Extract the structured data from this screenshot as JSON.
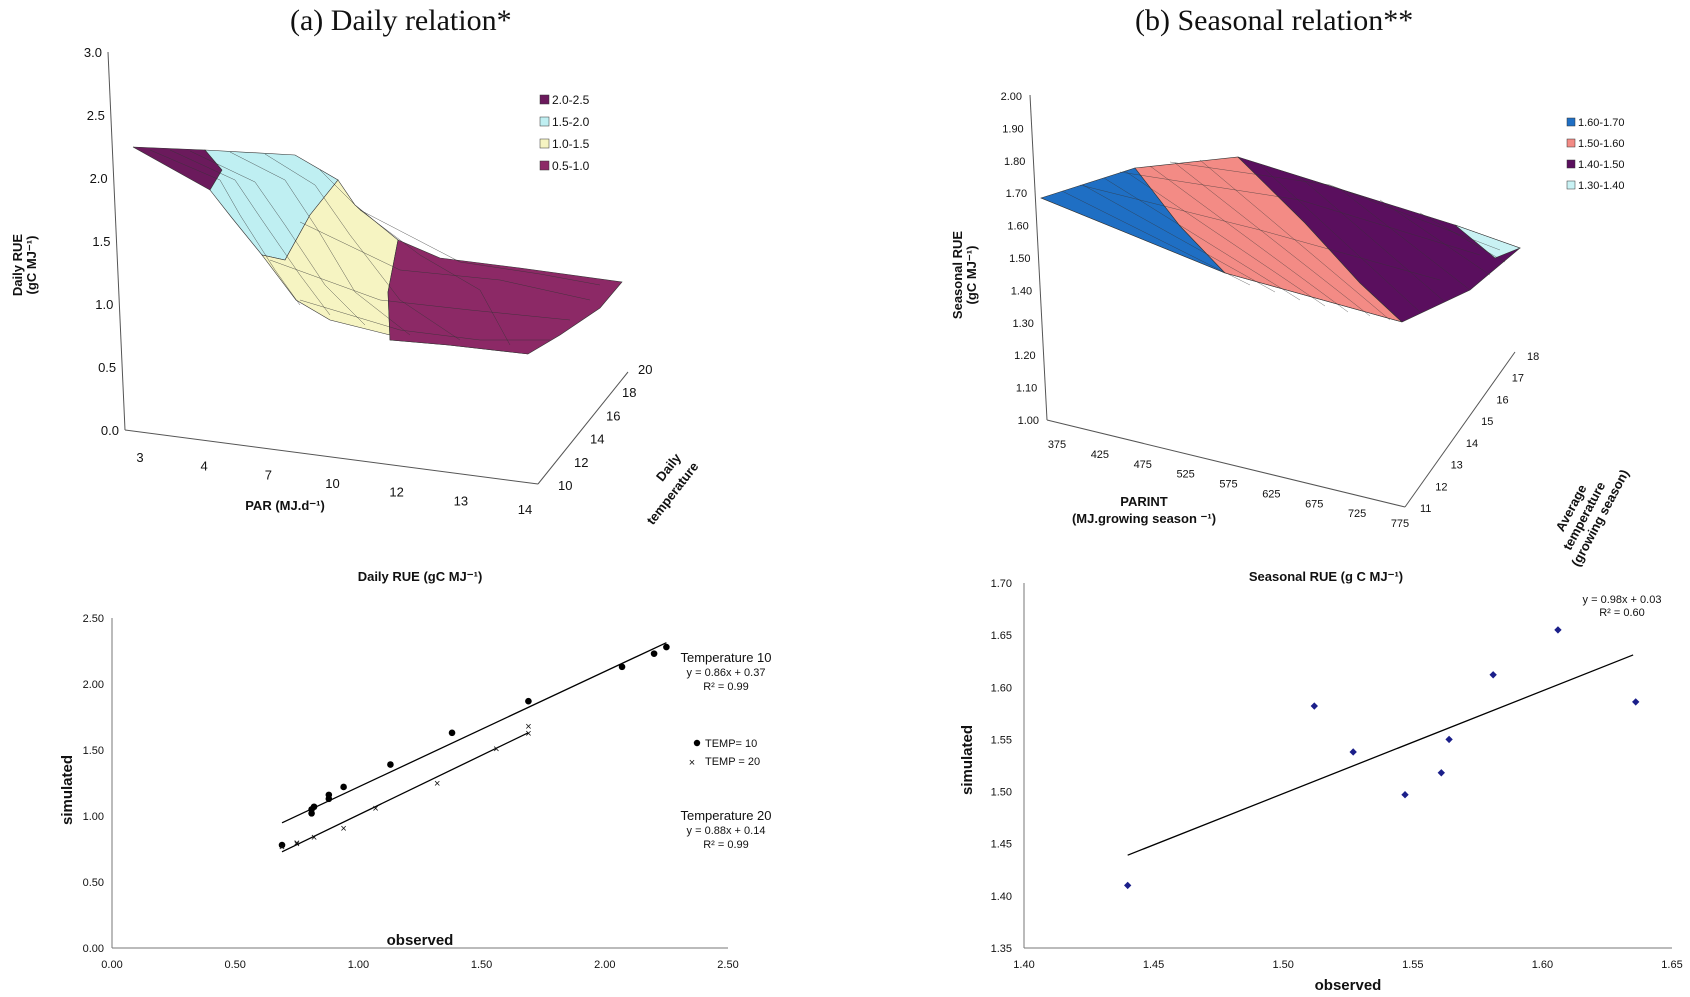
{
  "panel_a_title": "(a) Daily relation*",
  "panel_b_title": "(b) Seasonal relation**",
  "colors": {
    "violet": "#6b1a5c",
    "cyan": "#bfeff2",
    "yellow": "#f6f4c2",
    "rose": "#8c2966",
    "blue": "#1f6fc4",
    "salmon": "#f38b85",
    "purple": "#5a0f5e",
    "pale_cyan": "#c9f2f4"
  },
  "chart_data": [
    {
      "type": "surface",
      "zlabel": "Daily RUE (gC MJ⁻¹)",
      "xlabel": "PAR (MJ.d⁻¹)",
      "ylabel": "Daily temperature",
      "z_ticks": [
        "3.0",
        "2.5",
        "2.0",
        "1.5",
        "1.0",
        "0.5",
        "0.0"
      ],
      "x_ticks": [
        "3",
        "4",
        "7",
        "10",
        "12",
        "13",
        "14"
      ],
      "y_ticks": [
        "20",
        "18",
        "16",
        "14",
        "12",
        "10"
      ],
      "legend": [
        "2.0-2.5",
        "1.5-2.0",
        "1.0-1.5",
        "0.5-1.0"
      ]
    },
    {
      "type": "surface",
      "zlabel": "Seasonal RUE (gC MJ⁻¹)",
      "xlabel": "PARINT (MJ.growing season ⁻¹)",
      "ylabel": "Average temperature (growing season)",
      "z_ticks": [
        "2.00",
        "1.90",
        "1.80",
        "1.70",
        "1.60",
        "1.50",
        "1.40",
        "1.30",
        "1.20",
        "1.10",
        "1.00"
      ],
      "x_ticks": [
        "375",
        "425",
        "475",
        "525",
        "575",
        "625",
        "675",
        "725",
        "775"
      ],
      "y_ticks": [
        "18",
        "17",
        "16",
        "15",
        "14",
        "13",
        "12",
        "11"
      ],
      "legend": [
        "1.60-1.70",
        "1.50-1.60",
        "1.40-1.50",
        "1.30-1.40"
      ]
    },
    {
      "type": "scatter",
      "title": "Daily RUE (gC MJ⁻¹)",
      "xlabel": "observed",
      "ylabel": "simulated",
      "xlim": [
        0,
        2.5
      ],
      "ylim": [
        0,
        2.5
      ],
      "x_ticks": [
        "0.00",
        "0.50",
        "1.00",
        "1.50",
        "2.00",
        "2.50"
      ],
      "y_ticks": [
        "0.00",
        "0.50",
        "1.00",
        "1.50",
        "2.00",
        "2.50"
      ],
      "series": [
        {
          "name": "TEMP= 10",
          "points": [
            [
              0.69,
              0.78
            ],
            [
              0.81,
              1.02
            ],
            [
              0.81,
              1.05
            ],
            [
              0.82,
              1.07
            ],
            [
              0.88,
              1.13
            ],
            [
              0.88,
              1.16
            ],
            [
              0.94,
              1.22
            ],
            [
              1.13,
              1.39
            ],
            [
              1.38,
              1.63
            ],
            [
              1.69,
              1.87
            ],
            [
              2.07,
              2.13
            ],
            [
              2.2,
              2.23
            ],
            [
              2.25,
              2.28
            ]
          ],
          "fit": [
            0.69,
            2.25
          ]
        },
        {
          "name": "TEMP = 20",
          "points": [
            [
              0.69,
              0.77
            ],
            [
              0.75,
              0.79
            ],
            [
              0.75,
              0.8
            ],
            [
              0.82,
              0.84
            ],
            [
              0.94,
              0.91
            ],
            [
              1.07,
              1.06
            ],
            [
              1.32,
              1.25
            ],
            [
              1.56,
              1.51
            ],
            [
              1.69,
              1.63
            ],
            [
              1.69,
              1.68
            ]
          ],
          "fit": [
            0.69,
            1.69
          ]
        }
      ],
      "annotations": [
        {
          "title": "Temperature 10",
          "equation": "y = 0.86x + 0.37",
          "r2": "R² = 0.99"
        },
        {
          "title": "Temperature 20",
          "equation": "y = 0.88x + 0.14",
          "r2": "R² = 0.99"
        }
      ]
    },
    {
      "type": "scatter",
      "title": "Seasonal RUE (g C MJ⁻¹)",
      "xlabel": "observed",
      "ylabel": "simulated",
      "xlim": [
        1.4,
        1.65
      ],
      "ylim": [
        1.35,
        1.7
      ],
      "x_ticks": [
        "1.40",
        "1.45",
        "1.50",
        "1.55",
        "1.60",
        "1.65"
      ],
      "y_ticks": [
        "1.70",
        "1.65",
        "1.60",
        "1.55",
        "1.50",
        "1.45",
        "1.40",
        "1.35"
      ],
      "points": [
        [
          1.44,
          1.41
        ],
        [
          1.512,
          1.582
        ],
        [
          1.527,
          1.538
        ],
        [
          1.547,
          1.497
        ],
        [
          1.561,
          1.518
        ],
        [
          1.564,
          1.55
        ],
        [
          1.581,
          1.612
        ],
        [
          1.606,
          1.655
        ],
        [
          1.636,
          1.586
        ]
      ],
      "fit": {
        "from": [
          1.44,
          1.439
        ],
        "to": [
          1.635,
          1.631
        ]
      },
      "equation": "y = 0.98x + 0.03",
      "r2": "R² = 0.60"
    }
  ]
}
